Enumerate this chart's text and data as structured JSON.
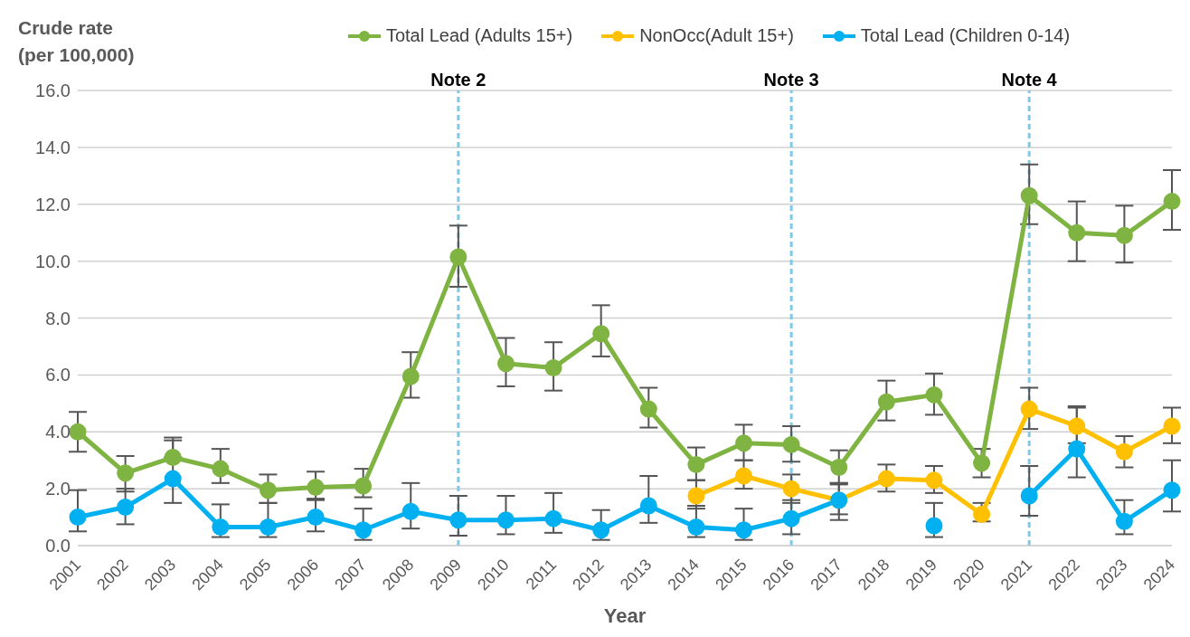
{
  "chart_data": {
    "type": "line",
    "ylabel": "Crude rate\n(per 100,000)",
    "xlabel": "Year",
    "categories": [
      "2001",
      "2002",
      "2003",
      "2004",
      "2005",
      "2006",
      "2007",
      "2008",
      "2009",
      "2010",
      "2011",
      "2012",
      "2013",
      "2014",
      "2015",
      "2016",
      "2017",
      "2018",
      "2019",
      "2020",
      "2021",
      "2022",
      "2023",
      "2024"
    ],
    "series": [
      {
        "name": "Total Lead (Adults 15+)",
        "color": "#7fb342",
        "values": [
          4.0,
          2.55,
          3.1,
          2.7,
          1.95,
          2.05,
          2.1,
          5.95,
          10.15,
          6.4,
          6.25,
          7.45,
          4.8,
          2.85,
          3.6,
          3.55,
          2.75,
          5.05,
          5.3,
          2.9,
          12.3,
          11.0,
          10.9,
          12.1
        ],
        "errors": [
          [
            3.3,
            4.7
          ],
          [
            1.9,
            3.15
          ],
          [
            3.1,
            3.8
          ],
          [
            2.2,
            3.4
          ],
          [
            1.5,
            2.5
          ],
          [
            1.6,
            2.6
          ],
          [
            1.7,
            2.7
          ],
          [
            5.2,
            6.8
          ],
          [
            9.1,
            11.25
          ],
          [
            5.6,
            7.3
          ],
          [
            5.45,
            7.15
          ],
          [
            6.65,
            8.45
          ],
          [
            4.15,
            5.55
          ],
          [
            2.3,
            3.45
          ],
          [
            3.0,
            4.25
          ],
          [
            2.95,
            4.2
          ],
          [
            2.2,
            3.35
          ],
          [
            4.4,
            5.8
          ],
          [
            4.6,
            6.05
          ],
          [
            2.4,
            3.4
          ],
          [
            11.3,
            13.4
          ],
          [
            10.0,
            12.1
          ],
          [
            9.95,
            11.95
          ],
          [
            11.1,
            13.2
          ]
        ]
      },
      {
        "name": "NonOcc(Adult 15+)",
        "color": "#ffc000",
        "values": [
          null,
          null,
          null,
          null,
          null,
          null,
          null,
          null,
          null,
          null,
          null,
          null,
          null,
          1.75,
          2.45,
          2.0,
          1.6,
          2.35,
          2.3,
          1.1,
          4.8,
          4.2,
          3.3,
          4.2
        ],
        "errors": [
          null,
          null,
          null,
          null,
          null,
          null,
          null,
          null,
          null,
          null,
          null,
          null,
          null,
          [
            1.3,
            2.3
          ],
          [
            2.0,
            3.0
          ],
          [
            1.5,
            2.5
          ],
          [
            1.1,
            2.15
          ],
          [
            1.9,
            2.85
          ],
          [
            1.85,
            2.8
          ],
          [
            0.85,
            1.5
          ],
          [
            4.1,
            5.55
          ],
          [
            3.6,
            4.9
          ],
          [
            2.75,
            3.85
          ],
          [
            3.6,
            4.85
          ]
        ]
      },
      {
        "name": "Total Lead (Children 0-14)",
        "color": "#00b0f0",
        "values": [
          1.0,
          1.35,
          2.35,
          0.65,
          0.65,
          1.0,
          0.55,
          1.2,
          0.9,
          0.9,
          0.95,
          0.55,
          1.4,
          0.65,
          0.55,
          0.95,
          1.6,
          null,
          0.7,
          null,
          1.75,
          3.4,
          0.85,
          1.95
        ],
        "errors": [
          [
            0.5,
            1.95
          ],
          [
            0.75,
            2.0
          ],
          [
            1.5,
            3.7
          ],
          [
            0.3,
            1.45
          ],
          [
            0.3,
            1.5
          ],
          [
            0.5,
            1.65
          ],
          [
            0.2,
            1.3
          ],
          [
            0.6,
            2.2
          ],
          [
            0.35,
            1.75
          ],
          [
            0.4,
            1.75
          ],
          [
            0.45,
            1.85
          ],
          [
            0.2,
            1.25
          ],
          [
            0.8,
            2.45
          ],
          [
            0.3,
            1.4
          ],
          [
            0.2,
            1.3
          ],
          [
            0.4,
            1.6
          ],
          [
            0.9,
            2.2
          ],
          null,
          [
            0.3,
            1.5
          ],
          null,
          [
            1.05,
            2.8
          ],
          [
            2.4,
            4.85
          ],
          [
            0.4,
            1.6
          ],
          [
            1.2,
            3.0
          ]
        ]
      }
    ],
    "ylim": [
      0,
      16
    ],
    "yticks": [
      {
        "value": 0,
        "label": "0.0"
      },
      {
        "value": 2,
        "label": "2.0"
      },
      {
        "value": 4,
        "label": "4.0"
      },
      {
        "value": 6,
        "label": "6.0"
      },
      {
        "value": 8,
        "label": "8.0"
      },
      {
        "value": 10,
        "label": "10.0"
      },
      {
        "value": 12,
        "label": "12.0"
      },
      {
        "value": 14,
        "label": "14.0"
      },
      {
        "value": 16,
        "label": "16.0"
      }
    ],
    "grid": "y",
    "legend": "top",
    "marker": "circle",
    "line_style": "solid",
    "ref_lines": [
      {
        "axis": "x",
        "value": "2009",
        "label": "Note 2",
        "color": "#7ec8ea",
        "line_style": "dashed"
      },
      {
        "axis": "x",
        "value": "2016",
        "label": "Note 3",
        "color": "#7ec8ea",
        "line_style": "dashed"
      },
      {
        "axis": "x",
        "value": "2021",
        "label": "Note 4",
        "color": "#7ec8ea",
        "line_style": "dashed"
      }
    ]
  }
}
